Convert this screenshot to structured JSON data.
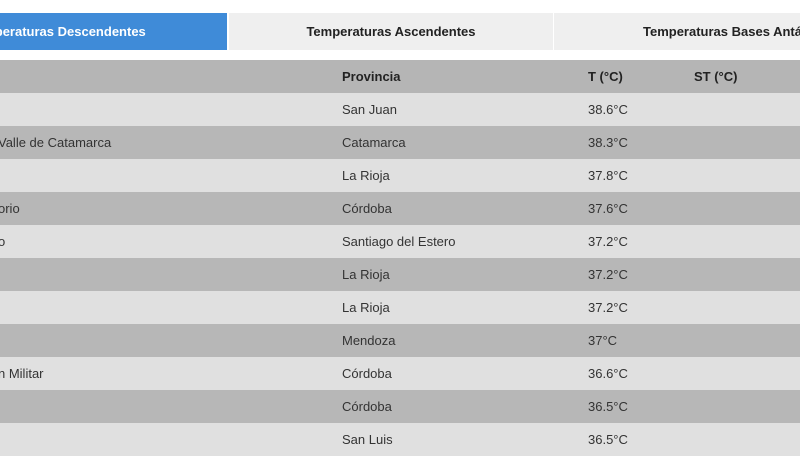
{
  "tabs": [
    {
      "label": "Temperaturas Descendentes",
      "active": true
    },
    {
      "label": "Temperaturas Ascendentes",
      "active": false
    },
    {
      "label": "Temperaturas Bases Antárticas",
      "active": false
    }
  ],
  "colors": {
    "active_tab": "#3f8bd8",
    "row_light": "#e0e0e0",
    "row_dark": "#b7b7b7"
  },
  "table": {
    "headers": [
      "",
      "Provincia",
      "T (°C)",
      "ST (°C)"
    ],
    "rows": [
      {
        "name": "",
        "provincia": "San Juan",
        "t": "38.6°C",
        "st": ""
      },
      {
        "name": "Valle de Catamarca",
        "provincia": "Catamarca",
        "t": "38.3°C",
        "st": ""
      },
      {
        "name": "",
        "provincia": "La Rioja",
        "t": "37.8°C",
        "st": ""
      },
      {
        "name": "orio",
        "provincia": "Córdoba",
        "t": "37.6°C",
        "st": ""
      },
      {
        "name": "o",
        "provincia": "Santiago del Estero",
        "t": "37.2°C",
        "st": ""
      },
      {
        "name": "",
        "provincia": "La Rioja",
        "t": "37.2°C",
        "st": ""
      },
      {
        "name": "",
        "provincia": "La Rioja",
        "t": "37.2°C",
        "st": ""
      },
      {
        "name": "",
        "provincia": "Mendoza",
        "t": "37°C",
        "st": ""
      },
      {
        "name": "n Militar",
        "provincia": "Córdoba",
        "t": "36.6°C",
        "st": ""
      },
      {
        "name": "",
        "provincia": "Córdoba",
        "t": "36.5°C",
        "st": ""
      },
      {
        "name": "",
        "provincia": "San Luis",
        "t": "36.5°C",
        "st": ""
      }
    ]
  }
}
